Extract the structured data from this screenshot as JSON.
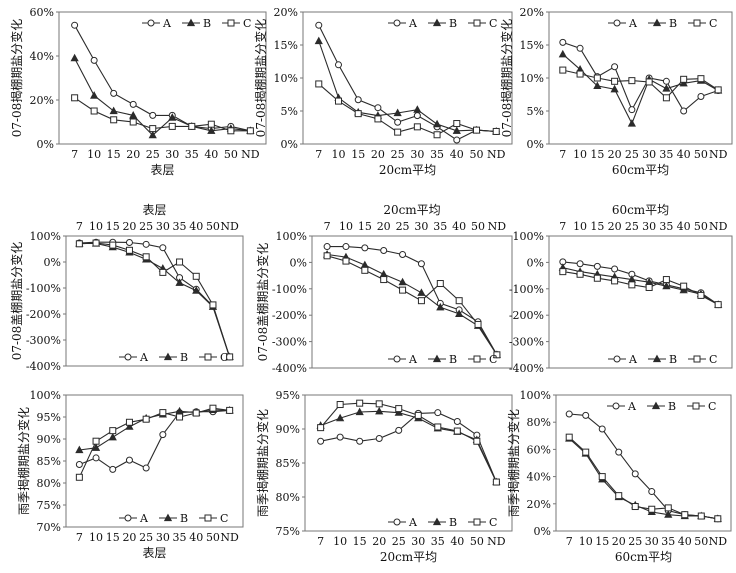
{
  "colors": {
    "line": "#2b2b2b",
    "frame": "#777777",
    "background": "#ffffff"
  },
  "marker_legend": [
    {
      "series": "A",
      "marker": "circle-open"
    },
    {
      "series": "B",
      "marker": "triangle-filled"
    },
    {
      "series": "C",
      "marker": "square-open"
    }
  ],
  "chart_data": [
    {
      "type": "line",
      "ylabel": "07-08揭棚期盐分变化",
      "xlabel": "表层",
      "xaxis_position": "bottom",
      "categories": [
        "7",
        "10",
        "15",
        "20",
        "25",
        "30",
        "35",
        "40",
        "50",
        "ND"
      ],
      "yticks": [
        "0%",
        "20%",
        "40%",
        "60%"
      ],
      "ylim": [
        0,
        60
      ],
      "legend_position": "top",
      "series": [
        {
          "name": "A",
          "values": [
            54,
            38,
            23,
            18,
            13,
            13,
            8,
            7,
            8,
            6
          ]
        },
        {
          "name": "B",
          "values": [
            39,
            22,
            15,
            13,
            4,
            12,
            8,
            6,
            7,
            6
          ]
        },
        {
          "name": "C",
          "values": [
            21,
            15,
            11,
            10,
            7,
            8,
            8,
            9,
            6,
            6
          ]
        }
      ]
    },
    {
      "type": "line",
      "ylabel": "07-08揭棚期盐分变化",
      "xlabel": "20cm平均",
      "xaxis_position": "bottom",
      "categories": [
        "7",
        "10",
        "15",
        "20",
        "25",
        "30",
        "35",
        "40",
        "50",
        "ND"
      ],
      "yticks": [
        "0%",
        "5%",
        "10%",
        "15%",
        "20%"
      ],
      "ylim": [
        0,
        20
      ],
      "legend_position": "top",
      "series": [
        {
          "name": "A",
          "values": [
            18,
            12,
            6.7,
            5.5,
            3.3,
            4.3,
            2.6,
            0.6,
            2.1,
            1.9
          ]
        },
        {
          "name": "B",
          "values": [
            15.6,
            7,
            4.8,
            4.3,
            4.7,
            5.2,
            3,
            2,
            2.1,
            1.9
          ]
        },
        {
          "name": "C",
          "values": [
            9.1,
            6.5,
            4.6,
            3.8,
            1.8,
            2.6,
            1.4,
            3.1,
            2.1,
            1.9
          ]
        }
      ]
    },
    {
      "type": "line",
      "ylabel": "07-08揭棚期盐分变化",
      "xlabel": "60cm平均",
      "xaxis_position": "bottom",
      "categories": [
        "7",
        "10",
        "15",
        "20",
        "25",
        "30",
        "35",
        "40",
        "50",
        "ND"
      ],
      "yticks": [
        "0%",
        "5%",
        "10%",
        "15%",
        "20%"
      ],
      "ylim": [
        0,
        20
      ],
      "legend_position": "top",
      "series": [
        {
          "name": "A",
          "values": [
            15.4,
            14.5,
            10.2,
            11.7,
            5.2,
            10,
            9.5,
            5,
            7.2,
            8.1
          ]
        },
        {
          "name": "B",
          "values": [
            13.6,
            11.3,
            8.8,
            8.3,
            3.1,
            9.8,
            8.4,
            9.2,
            9.6,
            8.1
          ]
        },
        {
          "name": "C",
          "values": [
            11.2,
            10.6,
            10,
            9.5,
            9.6,
            9.4,
            7,
            9.8,
            9.9,
            8.2
          ]
        }
      ]
    },
    {
      "type": "line",
      "ylabel": "07-08盖棚期盐分变化",
      "xlabel": "表层",
      "xaxis_position": "top",
      "categories": [
        "7",
        "10",
        "15",
        "20",
        "25",
        "30",
        "35",
        "40",
        "50",
        "ND"
      ],
      "yticks": [
        "-400%",
        "-300%",
        "-200%",
        "-100%",
        "0%",
        "100%"
      ],
      "ylim": [
        -400,
        100
      ],
      "legend_position": "bottom",
      "series": [
        {
          "name": "A",
          "values": [
            73,
            76,
            76,
            75,
            68,
            55,
            -60,
            -105,
            -170,
            -365
          ]
        },
        {
          "name": "B",
          "values": [
            71,
            71,
            57,
            37,
            10,
            -25,
            -80,
            -110,
            -172,
            -365
          ]
        },
        {
          "name": "C",
          "values": [
            70,
            73,
            65,
            45,
            20,
            -40,
            0,
            -55,
            -165,
            -365
          ]
        }
      ]
    },
    {
      "type": "line",
      "ylabel": "07-08盖棚期盐分变化",
      "xlabel": "20cm平均",
      "xaxis_position": "top",
      "categories": [
        "7",
        "10",
        "15",
        "20",
        "25",
        "30",
        "35",
        "40",
        "50",
        "ND"
      ],
      "yticks": [
        "-400%",
        "-300%",
        "-200%",
        "-100%",
        "0%",
        "100%"
      ],
      "ylim": [
        -400,
        100
      ],
      "legend_position": "bottom",
      "series": [
        {
          "name": "A",
          "values": [
            60,
            60,
            55,
            45,
            30,
            -5,
            -155,
            -180,
            -225,
            -350
          ]
        },
        {
          "name": "B",
          "values": [
            30,
            20,
            -10,
            -45,
            -75,
            -115,
            -170,
            -195,
            -240,
            -350
          ]
        },
        {
          "name": "C",
          "values": [
            25,
            5,
            -30,
            -65,
            -105,
            -145,
            -80,
            -145,
            -235,
            -350
          ]
        }
      ]
    },
    {
      "type": "line",
      "ylabel": "",
      "xlabel": "60cm平均",
      "xaxis_position": "top",
      "categories": [
        "7",
        "10",
        "15",
        "20",
        "25",
        "30",
        "35",
        "40",
        "50",
        "ND"
      ],
      "yticks": [
        "-400%",
        "-300%",
        "-200%",
        "-100%",
        "0%",
        "100%"
      ],
      "ylim": [
        -400,
        100
      ],
      "legend_position": "bottom",
      "series": [
        {
          "name": "A",
          "values": [
            2,
            -5,
            -15,
            -25,
            -45,
            -70,
            -85,
            -100,
            -115,
            -160
          ]
        },
        {
          "name": "B",
          "values": [
            -20,
            -35,
            -45,
            -55,
            -65,
            -75,
            -90,
            -105,
            -120,
            -160
          ]
        },
        {
          "name": "C",
          "values": [
            -35,
            -45,
            -60,
            -70,
            -85,
            -95,
            -65,
            -90,
            -125,
            -160
          ]
        }
      ]
    },
    {
      "type": "line",
      "ylabel": "雨季揭棚期盐分变化",
      "xlabel": "表层",
      "xaxis_position": "bottom",
      "categories": [
        "7",
        "10",
        "15",
        "20",
        "25",
        "30",
        "35",
        "40",
        "50",
        "ND"
      ],
      "yticks": [
        "70%",
        "75%",
        "80%",
        "85%",
        "90%",
        "95%",
        "100%"
      ],
      "ylim": [
        70,
        100
      ],
      "legend_position": "bottom",
      "series": [
        {
          "name": "A",
          "values": [
            84.2,
            85.7,
            83.1,
            85.2,
            83.4,
            91,
            96,
            96.2,
            96.2,
            96.5
          ]
        },
        {
          "name": "B",
          "values": [
            87.5,
            88,
            90.4,
            92.8,
            94.7,
            95.6,
            96.3,
            96,
            96.6,
            96.5
          ]
        },
        {
          "name": "C",
          "values": [
            81.3,
            89.5,
            91.9,
            93.8,
            94.5,
            96,
            95,
            95.9,
            97,
            96.5
          ]
        }
      ]
    },
    {
      "type": "line",
      "ylabel": "雨季揭棚期盐分变化",
      "xlabel": "20cm平均",
      "xaxis_position": "bottom",
      "categories": [
        "7",
        "10",
        "15",
        "20",
        "25",
        "30",
        "35",
        "40",
        "50",
        "ND"
      ],
      "yticks": [
        "75%",
        "80%",
        "85%",
        "90%",
        "95%"
      ],
      "ylim": [
        75,
        95
      ],
      "legend_position": "bottom",
      "series": [
        {
          "name": "A",
          "values": [
            88.2,
            88.8,
            88.2,
            88.6,
            89.8,
            92.3,
            92.4,
            91.1,
            89.1,
            82.2
          ]
        },
        {
          "name": "B",
          "values": [
            90.5,
            91.6,
            92.5,
            92.6,
            92.4,
            91.6,
            90.1,
            89.6,
            88.4,
            82.2
          ]
        },
        {
          "name": "C",
          "values": [
            90.2,
            93.6,
            93.8,
            93.7,
            93.0,
            92.0,
            90.3,
            89.7,
            88.2,
            82.2
          ]
        }
      ]
    },
    {
      "type": "line",
      "ylabel": "雨季揭棚期盐分变化",
      "xlabel": "60cm平均",
      "xaxis_position": "bottom",
      "categories": [
        "7",
        "10",
        "15",
        "20",
        "25",
        "30",
        "35",
        "40",
        "50",
        "ND"
      ],
      "yticks": [
        "0%",
        "20%",
        "40%",
        "60%",
        "80%",
        "100%"
      ],
      "ylim": [
        0,
        100
      ],
      "legend_position": "top",
      "series": [
        {
          "name": "A",
          "values": [
            86,
            85,
            75,
            58,
            42,
            29,
            15,
            12,
            11,
            9
          ]
        },
        {
          "name": "B",
          "values": [
            68,
            57,
            38,
            25,
            19,
            14,
            12,
            11,
            11,
            9
          ]
        },
        {
          "name": "C",
          "values": [
            69,
            58,
            40,
            26,
            18,
            16,
            17,
            12,
            11,
            9
          ]
        }
      ]
    }
  ]
}
